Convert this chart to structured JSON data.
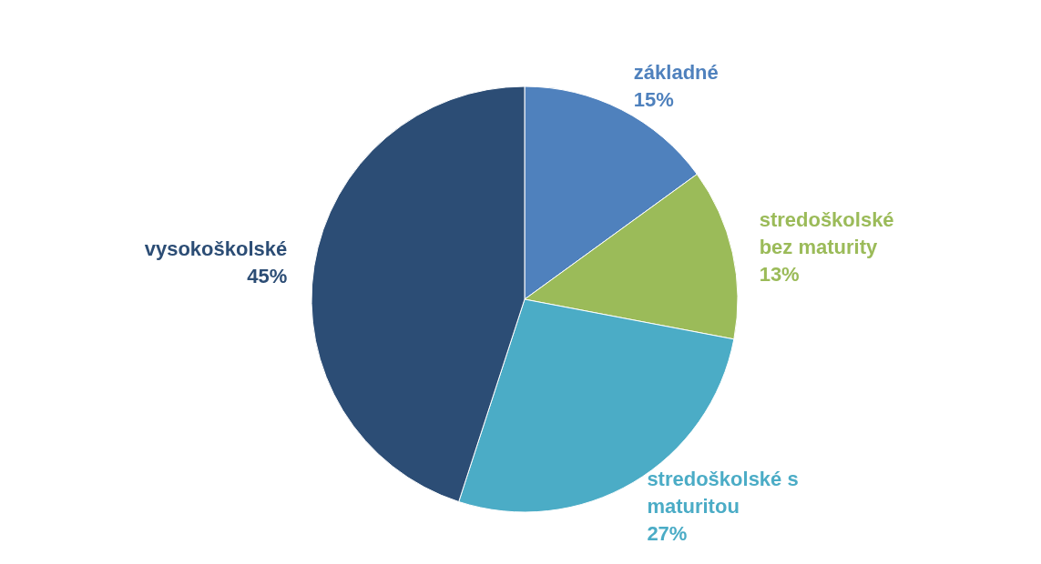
{
  "chart_data": {
    "type": "pie",
    "categories": [
      "základné",
      "stredoškolské bez maturity",
      "stredoškolské s maturitou",
      "vysokoškolské"
    ],
    "values": [
      15,
      13,
      27,
      45
    ],
    "value_labels": [
      "15%",
      "13%",
      "27%",
      "45%"
    ],
    "colors": [
      "#4f81bd",
      "#9bbb59",
      "#4bacc6",
      "#2c4d75"
    ],
    "legend": false
  }
}
